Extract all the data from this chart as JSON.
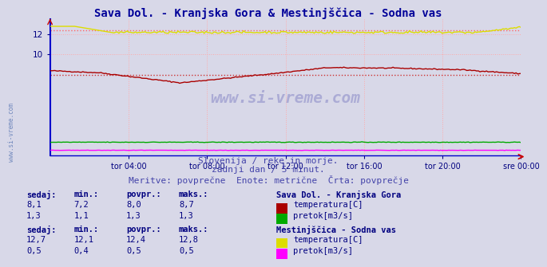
{
  "title": "Sava Dol. - Kranjska Gora & Mestinjščica - Sodna vas",
  "title_color": "#000099",
  "title_fontsize": 10,
  "bg_color": "#d8d8e8",
  "plot_bg_color": "#d8d8e8",
  "xlabel_ticks": [
    "tor 04:00",
    "tor 08:00",
    "tor 12:00",
    "tor 16:00",
    "tor 20:00",
    "sre 00:00"
  ],
  "xlabel_tick_positions": [
    0.167,
    0.333,
    0.5,
    0.667,
    0.833,
    1.0
  ],
  "ylim": [
    0,
    13.5
  ],
  "yticks": [
    10,
    12
  ],
  "grid_color": "#ffaaaa",
  "grid_color_v": "#ffaaaa",
  "subtitle1": "Slovenija / reke in morje.",
  "subtitle2": "zadnji dan / 5 minut.",
  "subtitle3": "Meritve: povprečne  Enote: metrične  Črta: povprečje",
  "subtitle_color": "#4444aa",
  "subtitle_fontsize": 8,
  "legend_title1": "Sava Dol. - Kranjska Gora",
  "legend_title2": "Mestinjščica - Sodna vas",
  "legend_color": "#000080",
  "table_header": [
    "sedaj:",
    "min.:",
    "povpr.:",
    "maks.:"
  ],
  "table_color": "#000080",
  "sava_temp_color": "#aa0000",
  "sava_flow_color": "#00aa00",
  "mest_temp_color": "#dddd00",
  "mest_flow_color": "#ff00ff",
  "sava_temp_avg_color": "#cc3333",
  "mest_temp_avg_color": "#ff6666",
  "spine_color": "#0000cc",
  "sava_temp_sedaj": 8.1,
  "sava_temp_min": 7.2,
  "sava_temp_povpr": 8.0,
  "sava_temp_maks": 8.7,
  "sava_flow_sedaj": 1.3,
  "sava_flow_min": 1.1,
  "sava_flow_povpr": 1.3,
  "sava_flow_maks": 1.3,
  "mest_temp_sedaj": 12.7,
  "mest_temp_min": 12.1,
  "mest_temp_povpr": 12.4,
  "mest_temp_maks": 12.8,
  "mest_flow_sedaj": 0.5,
  "mest_flow_min": 0.4,
  "mest_flow_povpr": 0.5,
  "mest_flow_maks": 0.5,
  "n_points": 288,
  "watermark": "www.si-vreme.com"
}
